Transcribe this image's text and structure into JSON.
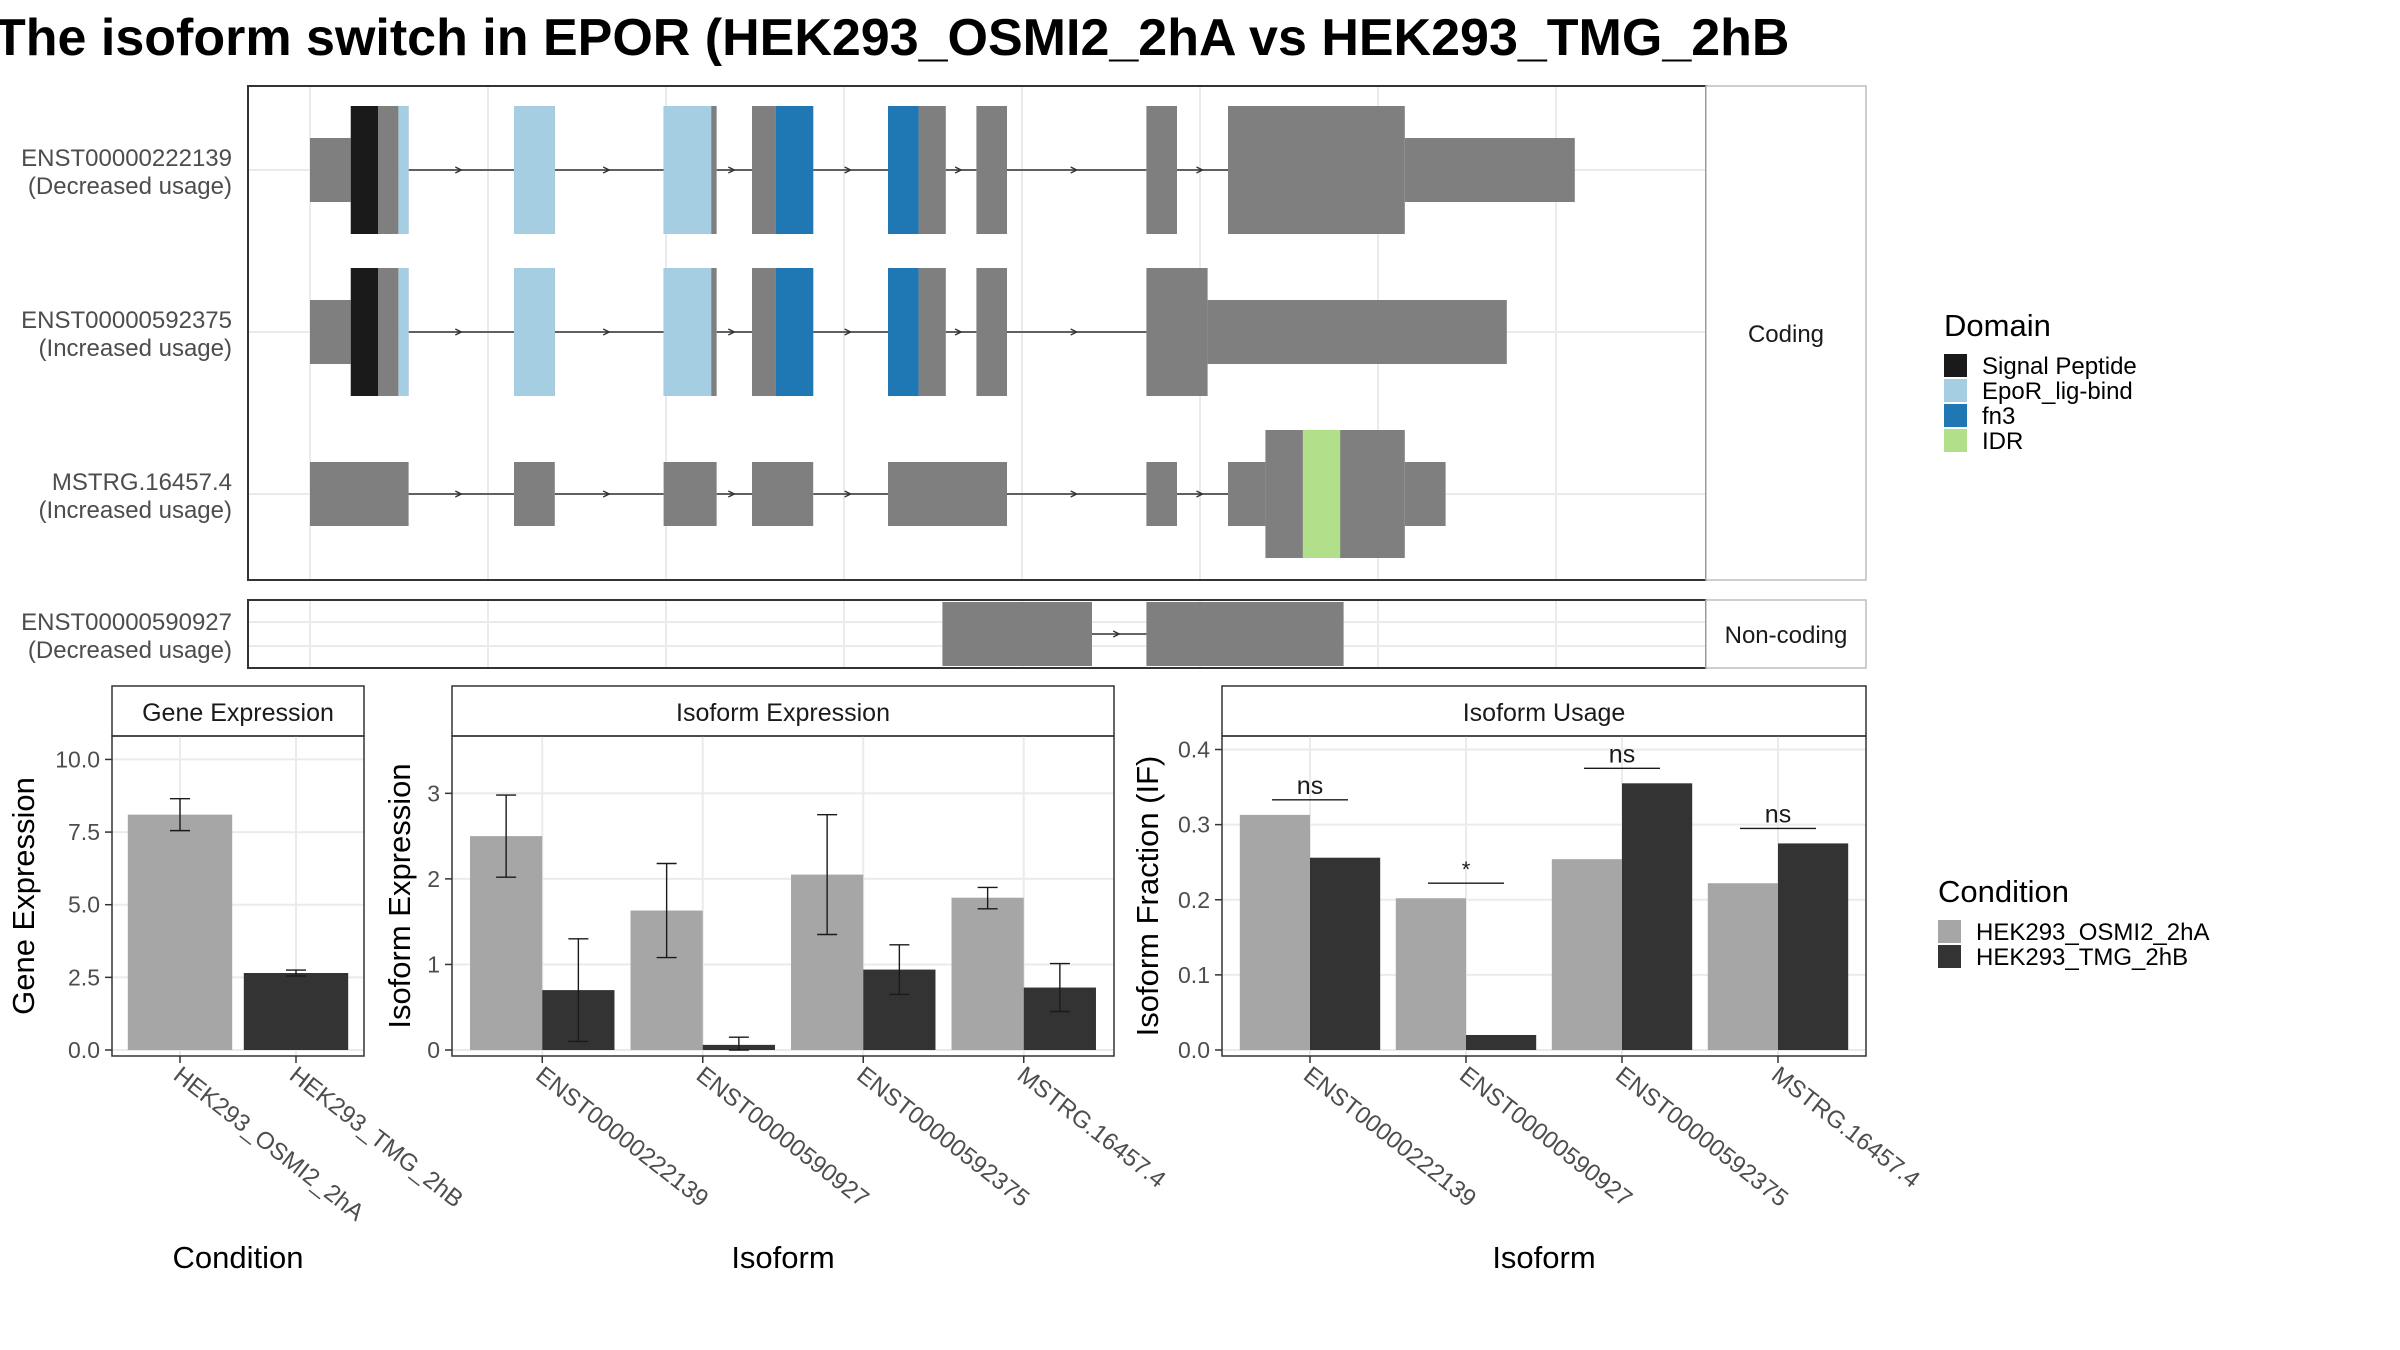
{
  "title": "The isoform switch in EPOR (HEK293_OSMI2_2hA vs HEK293_TMG_2hB",
  "colors": {
    "exon": "#7f7f7f",
    "panel_border": "#333333",
    "grid": "#ebebeb",
    "strip_border": "#bdbdbd",
    "cond_A": "#a6a6a6",
    "cond_B": "#333333"
  },
  "legends": {
    "domain": {
      "title": "Domain",
      "items": [
        {
          "label": "Signal Peptide",
          "color": "#1a1a1a"
        },
        {
          "label": "EpoR_lig-bind",
          "color": "#a6cee3"
        },
        {
          "label": "fn3",
          "color": "#1f78b4"
        },
        {
          "label": "IDR",
          "color": "#b2df8a"
        }
      ]
    },
    "condition": {
      "title": "Condition",
      "items": [
        {
          "label": "HEK293_OSMI2_2hA",
          "color": "#a6a6a6"
        },
        {
          "label": "HEK293_TMG_2hB",
          "color": "#333333"
        }
      ]
    }
  },
  "chart_data": [
    {
      "type": "gene-structure",
      "facets": [
        "Coding",
        "Non-coding"
      ],
      "transcripts": [
        {
          "name": "ENST00000222139",
          "usage": "(Decreased usage)",
          "facet": "Coding",
          "exons": [
            [
              1,
              1.6,
              "utr"
            ],
            [
              1.6,
              2.0,
              "cds"
            ],
            [
              2.0,
              2.3,
              "cds"
            ],
            [
              2.3,
              2.45,
              "cds"
            ],
            [
              4.0,
              4.6,
              "cds"
            ],
            [
              6.2,
              6.9,
              "cds"
            ],
            [
              6.9,
              6.98,
              "cds"
            ],
            [
              7.5,
              7.85,
              "cds"
            ],
            [
              7.85,
              8.4,
              "cds"
            ],
            [
              9.5,
              9.95,
              "cds"
            ],
            [
              9.95,
              10.35,
              "cds"
            ],
            [
              10.8,
              11.25,
              "cds"
            ],
            [
              13.3,
              13.75,
              "cds"
            ],
            [
              14.5,
              17.1,
              "cds"
            ],
            [
              17.1,
              19.6,
              "utr"
            ]
          ],
          "domains": [
            [
              1.6,
              2.0,
              "Signal Peptide"
            ],
            [
              2.3,
              2.45,
              "EpoR_lig-bind"
            ],
            [
              4.0,
              4.6,
              "EpoR_lig-bind"
            ],
            [
              6.2,
              6.9,
              "EpoR_lig-bind"
            ],
            [
              7.85,
              8.4,
              "fn3"
            ],
            [
              9.5,
              9.95,
              "fn3"
            ]
          ]
        },
        {
          "name": "ENST00000592375",
          "usage": "(Increased usage)",
          "facet": "Coding",
          "exons": [
            [
              1,
              1.6,
              "utr"
            ],
            [
              1.6,
              2.0,
              "cds"
            ],
            [
              2.0,
              2.3,
              "cds"
            ],
            [
              2.3,
              2.45,
              "cds"
            ],
            [
              4.0,
              4.6,
              "cds"
            ],
            [
              6.2,
              6.9,
              "cds"
            ],
            [
              6.9,
              6.98,
              "cds"
            ],
            [
              7.5,
              7.85,
              "cds"
            ],
            [
              7.85,
              8.4,
              "cds"
            ],
            [
              9.5,
              9.95,
              "cds"
            ],
            [
              9.95,
              10.35,
              "cds"
            ],
            [
              10.8,
              11.25,
              "cds"
            ],
            [
              13.3,
              14.2,
              "cds"
            ],
            [
              14.2,
              18.6,
              "utr"
            ]
          ],
          "domains": [
            [
              1.6,
              2.0,
              "Signal Peptide"
            ],
            [
              2.3,
              2.45,
              "EpoR_lig-bind"
            ],
            [
              4.0,
              4.6,
              "EpoR_lig-bind"
            ],
            [
              6.2,
              6.9,
              "EpoR_lig-bind"
            ],
            [
              7.85,
              8.4,
              "fn3"
            ],
            [
              9.5,
              9.95,
              "fn3"
            ]
          ]
        },
        {
          "name": "MSTRG.16457.4",
          "usage": "(Increased usage)",
          "facet": "Coding",
          "exons": [
            [
              1,
              2.45,
              "utr"
            ],
            [
              4.0,
              4.6,
              "utr"
            ],
            [
              6.2,
              6.98,
              "utr"
            ],
            [
              7.5,
              8.4,
              "utr"
            ],
            [
              9.5,
              11.25,
              "utr"
            ],
            [
              13.3,
              13.75,
              "utr"
            ],
            [
              14.5,
              15.05,
              "utr"
            ],
            [
              15.05,
              17.1,
              "cds"
            ],
            [
              17.1,
              17.7,
              "utr"
            ]
          ],
          "domains": [
            [
              15.6,
              16.15,
              "IDR"
            ]
          ]
        },
        {
          "name": "ENST00000590927",
          "usage": "(Decreased usage)",
          "facet": "Non-coding",
          "exons": [
            [
              10.3,
              12.5,
              "nc"
            ],
            [
              13.3,
              16.2,
              "nc"
            ]
          ],
          "domains": []
        }
      ]
    },
    {
      "type": "bar",
      "title": "Gene Expression",
      "xlabel": "Condition",
      "ylabel": "Gene Expression",
      "ylim": [
        0,
        10.6
      ],
      "yticks": [
        "0.0",
        "2.5",
        "5.0",
        "7.5",
        "10.0"
      ],
      "categories": [
        "HEK293_OSMI2_2hA",
        "HEK293_TMG_2hB"
      ],
      "values": [
        8.1,
        2.65
      ],
      "errors": [
        [
          7.55,
          8.65
        ],
        [
          2.55,
          2.75
        ]
      ]
    },
    {
      "type": "bar",
      "title": "Isoform Expression",
      "xlabel": "Isoform",
      "ylabel": "Isoform Expression",
      "ylim": [
        0,
        3.6
      ],
      "yticks": [
        "0",
        "1",
        "2",
        "3"
      ],
      "categories": [
        "ENST00000222139",
        "ENST00000590927",
        "ENST00000592375",
        "MSTRG.16457.4"
      ],
      "series": [
        {
          "name": "HEK293_OSMI2_2hA",
          "values": [
            2.5,
            1.63,
            2.05,
            1.78
          ],
          "errors": [
            [
              2.02,
              2.98
            ],
            [
              1.08,
              2.18
            ],
            [
              1.35,
              2.75
            ],
            [
              1.65,
              1.9
            ]
          ]
        },
        {
          "name": "HEK293_TMG_2hB",
          "values": [
            0.7,
            0.06,
            0.94,
            0.73
          ],
          "errors": [
            [
              0.1,
              1.3
            ],
            [
              0.0,
              0.15
            ],
            [
              0.65,
              1.23
            ],
            [
              0.45,
              1.01
            ]
          ]
        }
      ]
    },
    {
      "type": "bar",
      "title": "Isoform Usage",
      "xlabel": "Isoform",
      "ylabel": "Isoform Fraction (IF)",
      "ylim": [
        0,
        0.41
      ],
      "yticks": [
        "0.0",
        "0.1",
        "0.2",
        "0.3",
        "0.4"
      ],
      "categories": [
        "ENST00000222139",
        "ENST00000590927",
        "ENST00000592375",
        "MSTRG.16457.4"
      ],
      "series": [
        {
          "name": "HEK293_OSMI2_2hA",
          "values": [
            0.313,
            0.202,
            0.254,
            0.222
          ]
        },
        {
          "name": "HEK293_TMG_2hB",
          "values": [
            0.256,
            0.02,
            0.355,
            0.275
          ]
        }
      ],
      "annotations": [
        {
          "label": "ns",
          "y": 0.333
        },
        {
          "label": "*",
          "y": 0.222
        },
        {
          "label": "ns",
          "y": 0.375
        },
        {
          "label": "ns",
          "y": 0.295
        }
      ]
    }
  ]
}
